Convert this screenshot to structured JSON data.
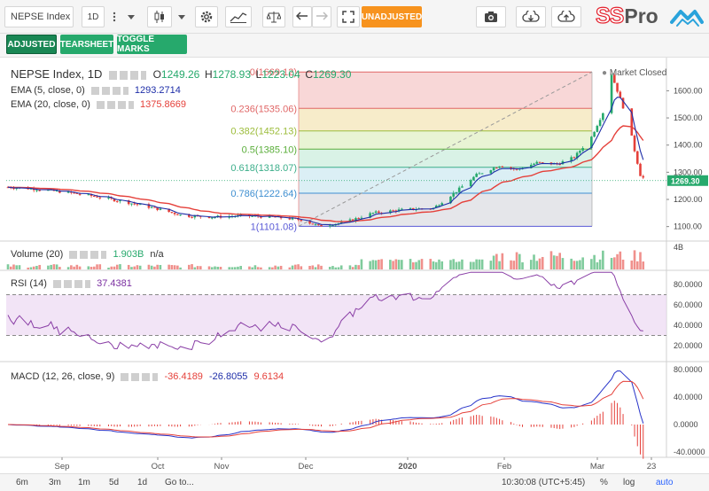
{
  "toolbar": {
    "symbol": "NEPSE Index",
    "interval": "1D",
    "unadjusted_label": "UNADJUSTED",
    "brand_ss": "SS",
    "brand_pro": "Pro"
  },
  "toolbar2": {
    "adjusted_label": "ADJUSTED",
    "tearsheet_label": "TEARSHEET",
    "toggle_marks_label": "TOGGLE MARKS"
  },
  "main_legend": {
    "title": "NEPSE Index, 1D",
    "o_label": "O",
    "o_value": "1249.26",
    "h_label": "H",
    "h_value": "1278.93",
    "l_label": "L",
    "l_value": "1223.04",
    "c_label": "C",
    "c_value": "1269.30",
    "ema5_label": "EMA (5, close, 0)",
    "ema5_value": "1293.2714",
    "ema20_label": "EMA (20, close, 0)",
    "ema20_value": "1375.8669",
    "market_status": "Market Closed"
  },
  "fib": {
    "levels": [
      {
        "label": "0(1669.12)",
        "value": 1669.12
      },
      {
        "label": "0.236(1535.06)",
        "value": 1535.06
      },
      {
        "label": "0.382(1452.13)",
        "value": 1452.13
      },
      {
        "label": "0.5(1385.10)",
        "value": 1385.1
      },
      {
        "label": "0.618(1318.07)",
        "value": 1318.07
      },
      {
        "label": "0.786(1222.64)",
        "value": 1222.64
      },
      {
        "label": "1(1101.08)",
        "value": 1101.08
      }
    ]
  },
  "price_axis": {
    "ticks": [
      "1600.00",
      "1500.00",
      "1400.00",
      "1300.00",
      "1200.00",
      "1100.00"
    ],
    "last_price": "1269.30"
  },
  "volume_panel": {
    "label": "Volume (20)",
    "value": "1.903B",
    "extra": "n/a",
    "axis_tick": "4B"
  },
  "rsi_panel": {
    "label": "RSI (14)",
    "value": "37.4381",
    "ticks": [
      "80.0000",
      "60.0000",
      "40.0000",
      "20.0000"
    ]
  },
  "macd_panel": {
    "label": "MACD (12, 26, close, 9)",
    "hist_value": "-36.4189",
    "macd_value": "-26.8055",
    "signal_value": "9.6134",
    "ticks": [
      "80.0000",
      "40.0000",
      "0.0000",
      "-40.0000"
    ]
  },
  "time_axis": {
    "labels": [
      "Sep",
      "Oct",
      "Nov",
      "Dec",
      "2020",
      "Feb",
      "Mar",
      "23"
    ]
  },
  "bottombar": {
    "ranges": [
      "6m",
      "3m",
      "1m",
      "5d",
      "1d"
    ],
    "goto_label": "Go to...",
    "clock": "10:30:08 (UTC+5:45)",
    "percent_label": "%",
    "log_label": "log",
    "auto_label": "auto"
  },
  "chart_data": {
    "type": "candlestick",
    "title": "NEPSE Index, 1D",
    "ylim": [
      1075,
      1690
    ],
    "close_series": [
      {
        "date": "2019-08-15",
        "value": 1245
      },
      {
        "date": "2019-08-25",
        "value": 1238
      },
      {
        "date": "2019-09-05",
        "value": 1225
      },
      {
        "date": "2019-09-15",
        "value": 1210
      },
      {
        "date": "2019-09-25",
        "value": 1190
      },
      {
        "date": "2019-10-05",
        "value": 1168
      },
      {
        "date": "2019-10-15",
        "value": 1140
      },
      {
        "date": "2019-10-25",
        "value": 1135
      },
      {
        "date": "2019-11-05",
        "value": 1140
      },
      {
        "date": "2019-11-15",
        "value": 1135
      },
      {
        "date": "2019-11-25",
        "value": 1125
      },
      {
        "date": "2019-12-01",
        "value": 1102
      },
      {
        "date": "2019-12-10",
        "value": 1115
      },
      {
        "date": "2019-12-20",
        "value": 1150
      },
      {
        "date": "2019-12-31",
        "value": 1163
      },
      {
        "date": "2020-01-10",
        "value": 1168
      },
      {
        "date": "2020-01-18",
        "value": 1230
      },
      {
        "date": "2020-01-25",
        "value": 1290
      },
      {
        "date": "2020-02-02",
        "value": 1325
      },
      {
        "date": "2020-02-08",
        "value": 1310
      },
      {
        "date": "2020-02-15",
        "value": 1335
      },
      {
        "date": "2020-02-22",
        "value": 1330
      },
      {
        "date": "2020-02-28",
        "value": 1355
      },
      {
        "date": "2020-03-05",
        "value": 1430
      },
      {
        "date": "2020-03-09",
        "value": 1520
      },
      {
        "date": "2020-03-12",
        "value": 1660
      },
      {
        "date": "2020-03-15",
        "value": 1570
      },
      {
        "date": "2020-03-18",
        "value": 1480
      },
      {
        "date": "2020-03-20",
        "value": 1380
      },
      {
        "date": "2020-03-22",
        "value": 1290
      },
      {
        "date": "2020-03-24",
        "value": 1269.3
      }
    ]
  }
}
